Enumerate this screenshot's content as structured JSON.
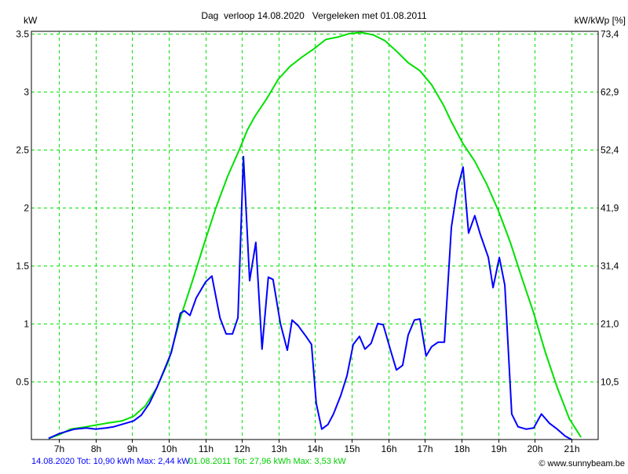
{
  "chart_data": {
    "type": "line",
    "title": "Dag  verloop 14.08.2020   Vergeleken met 01.08.2011",
    "ylabel": "kW",
    "ylabel_right": "kW/kWp [%]",
    "xlim": [
      6.25,
      21.73
    ],
    "ylim": [
      0,
      3.52
    ],
    "grid": true,
    "x_ticks": [
      {
        "value": 7,
        "label": "7h"
      },
      {
        "value": 8,
        "label": "8h"
      },
      {
        "value": 9,
        "label": "9h"
      },
      {
        "value": 10,
        "label": "10h"
      },
      {
        "value": 11,
        "label": "11h"
      },
      {
        "value": 12,
        "label": "12h"
      },
      {
        "value": 13,
        "label": "13h"
      },
      {
        "value": 14,
        "label": "14h"
      },
      {
        "value": 15,
        "label": "15h"
      },
      {
        "value": 16,
        "label": "16h"
      },
      {
        "value": 17,
        "label": "17h"
      },
      {
        "value": 18,
        "label": "18h"
      },
      {
        "value": 19,
        "label": "19h"
      },
      {
        "value": 20,
        "label": "20h"
      },
      {
        "value": 21,
        "label": "21h"
      }
    ],
    "y_ticks": [
      {
        "value": 0.5,
        "label": "0.5",
        "right": "10,5"
      },
      {
        "value": 1,
        "label": "1",
        "right": "21,0"
      },
      {
        "value": 1.5,
        "label": "1.5",
        "right": "31,4"
      },
      {
        "value": 2,
        "label": "2",
        "right": "41,9"
      },
      {
        "value": 2.5,
        "label": "2.5",
        "right": "52,4"
      },
      {
        "value": 3,
        "label": "3",
        "right": "62,9"
      },
      {
        "value": 3.5,
        "label": "3.5",
        "right": "73,4"
      }
    ],
    "series": [
      {
        "name": "14.08.2020",
        "color": "#0000ff",
        "legend": "14.08.2020 Tot: 10,90 kWh Max: 2,44 kW",
        "points": [
          [
            6.72,
            0.01
          ],
          [
            7.0,
            0.05
          ],
          [
            7.43,
            0.09
          ],
          [
            7.75,
            0.1
          ],
          [
            8.01,
            0.09
          ],
          [
            8.29,
            0.1
          ],
          [
            8.5,
            0.11
          ],
          [
            8.82,
            0.14
          ],
          [
            9.04,
            0.16
          ],
          [
            9.25,
            0.21
          ],
          [
            9.47,
            0.31
          ],
          [
            9.68,
            0.45
          ],
          [
            9.89,
            0.61
          ],
          [
            10.07,
            0.75
          ],
          [
            10.22,
            0.95
          ],
          [
            10.32,
            1.09
          ],
          [
            10.43,
            1.11
          ],
          [
            10.58,
            1.07
          ],
          [
            10.75,
            1.22
          ],
          [
            11.01,
            1.36
          ],
          [
            11.18,
            1.41
          ],
          [
            11.4,
            1.05
          ],
          [
            11.57,
            0.91
          ],
          [
            11.74,
            0.91
          ],
          [
            11.89,
            1.05
          ],
          [
            12.04,
            2.44
          ],
          [
            12.21,
            1.37
          ],
          [
            12.38,
            1.7
          ],
          [
            12.55,
            0.78
          ],
          [
            12.72,
            1.4
          ],
          [
            12.85,
            1.38
          ],
          [
            13.05,
            1.0
          ],
          [
            13.24,
            0.77
          ],
          [
            13.37,
            1.03
          ],
          [
            13.54,
            0.98
          ],
          [
            13.75,
            0.89
          ],
          [
            13.9,
            0.82
          ],
          [
            14.03,
            0.31
          ],
          [
            14.18,
            0.09
          ],
          [
            14.35,
            0.13
          ],
          [
            14.5,
            0.22
          ],
          [
            14.7,
            0.38
          ],
          [
            14.87,
            0.55
          ],
          [
            15.04,
            0.82
          ],
          [
            15.21,
            0.89
          ],
          [
            15.36,
            0.78
          ],
          [
            15.53,
            0.83
          ],
          [
            15.71,
            1.0
          ],
          [
            15.86,
            0.99
          ],
          [
            16.05,
            0.78
          ],
          [
            16.22,
            0.6
          ],
          [
            16.39,
            0.64
          ],
          [
            16.54,
            0.9
          ],
          [
            16.71,
            1.03
          ],
          [
            16.86,
            1.04
          ],
          [
            17.03,
            0.72
          ],
          [
            17.18,
            0.8
          ],
          [
            17.36,
            0.84
          ],
          [
            17.53,
            0.84
          ],
          [
            17.72,
            1.83
          ],
          [
            17.87,
            2.14
          ],
          [
            18.04,
            2.35
          ],
          [
            18.19,
            1.78
          ],
          [
            18.36,
            1.93
          ],
          [
            18.51,
            1.77
          ],
          [
            18.73,
            1.57
          ],
          [
            18.86,
            1.31
          ],
          [
            19.03,
            1.57
          ],
          [
            19.18,
            1.33
          ],
          [
            19.37,
            0.22
          ],
          [
            19.54,
            0.11
          ],
          [
            19.76,
            0.09
          ],
          [
            19.97,
            0.1
          ],
          [
            20.18,
            0.22
          ],
          [
            20.4,
            0.14
          ],
          [
            20.61,
            0.09
          ],
          [
            20.83,
            0.03
          ],
          [
            21.0,
            0.0
          ]
        ]
      },
      {
        "name": "01.08.2011",
        "color": "#00e000",
        "legend": "01.08.2011 Tot: 27,96 kWh Max: 3,53 kW",
        "points": [
          [
            6.72,
            0.01
          ],
          [
            7.0,
            0.04
          ],
          [
            7.32,
            0.09
          ],
          [
            7.75,
            0.11
          ],
          [
            8.29,
            0.14
          ],
          [
            8.72,
            0.16
          ],
          [
            9.04,
            0.2
          ],
          [
            9.36,
            0.29
          ],
          [
            9.68,
            0.45
          ],
          [
            10.0,
            0.68
          ],
          [
            10.32,
            1.05
          ],
          [
            10.64,
            1.36
          ],
          [
            10.97,
            1.69
          ],
          [
            11.29,
            2.0
          ],
          [
            11.61,
            2.27
          ],
          [
            11.93,
            2.5
          ],
          [
            12.15,
            2.67
          ],
          [
            12.36,
            2.79
          ],
          [
            12.68,
            2.94
          ],
          [
            13.0,
            3.11
          ],
          [
            13.32,
            3.22
          ],
          [
            13.65,
            3.3
          ],
          [
            13.97,
            3.37
          ],
          [
            14.29,
            3.45
          ],
          [
            14.61,
            3.47
          ],
          [
            14.93,
            3.5
          ],
          [
            15.25,
            3.51
          ],
          [
            15.58,
            3.49
          ],
          [
            15.9,
            3.44
          ],
          [
            16.22,
            3.35
          ],
          [
            16.54,
            3.25
          ],
          [
            16.86,
            3.18
          ],
          [
            17.18,
            3.06
          ],
          [
            17.51,
            2.88
          ],
          [
            17.72,
            2.74
          ],
          [
            18.04,
            2.55
          ],
          [
            18.36,
            2.4
          ],
          [
            18.69,
            2.2
          ],
          [
            19.01,
            1.97
          ],
          [
            19.33,
            1.7
          ],
          [
            19.65,
            1.39
          ],
          [
            19.97,
            1.09
          ],
          [
            20.29,
            0.75
          ],
          [
            20.61,
            0.45
          ],
          [
            20.94,
            0.18
          ],
          [
            21.26,
            0.02
          ]
        ]
      }
    ]
  },
  "footer": {
    "legend_blue": "14.08.2020 Tot: 10,90 kWh Max: 2,44 kW",
    "legend_green": "01.08.2011 Tot: 27,96 kWh Max: 3,53 kW",
    "copyright": "© www.sunnybeam.be"
  }
}
